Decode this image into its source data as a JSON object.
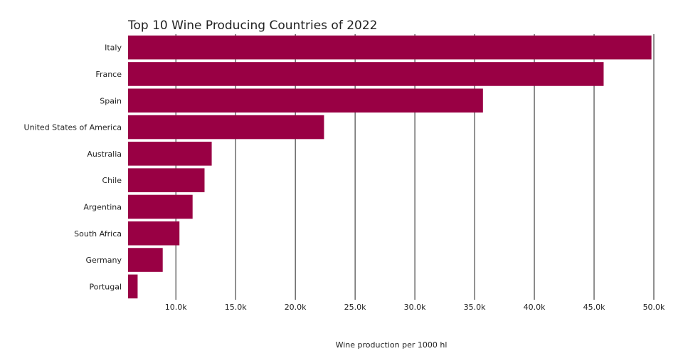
{
  "chart_data": {
    "type": "bar",
    "orientation": "horizontal",
    "title": "Top 10 Wine Producing Countries of 2022",
    "xlabel": "Wine production per 1000 hl",
    "ylabel": "",
    "categories": [
      "Italy",
      "France",
      "Spain",
      "United States of America",
      "Australia",
      "Chile",
      "Argentina",
      "South Africa",
      "Germany",
      "Portugal"
    ],
    "values": [
      49800,
      45800,
      35700,
      22400,
      13000,
      12400,
      11400,
      10300,
      8900,
      6800
    ],
    "xlim": [
      6000,
      50000
    ],
    "xticks": [
      10000,
      15000,
      20000,
      25000,
      30000,
      35000,
      40000,
      45000,
      50000
    ],
    "xtick_labels": [
      "10.0k",
      "15.0k",
      "20.0k",
      "25.0k",
      "30.0k",
      "35.0k",
      "40.0k",
      "45.0k",
      "50.0k"
    ],
    "grid": "vertical",
    "legend": "none",
    "colors": {
      "bar": "#990044",
      "grid": "#222222"
    }
  }
}
